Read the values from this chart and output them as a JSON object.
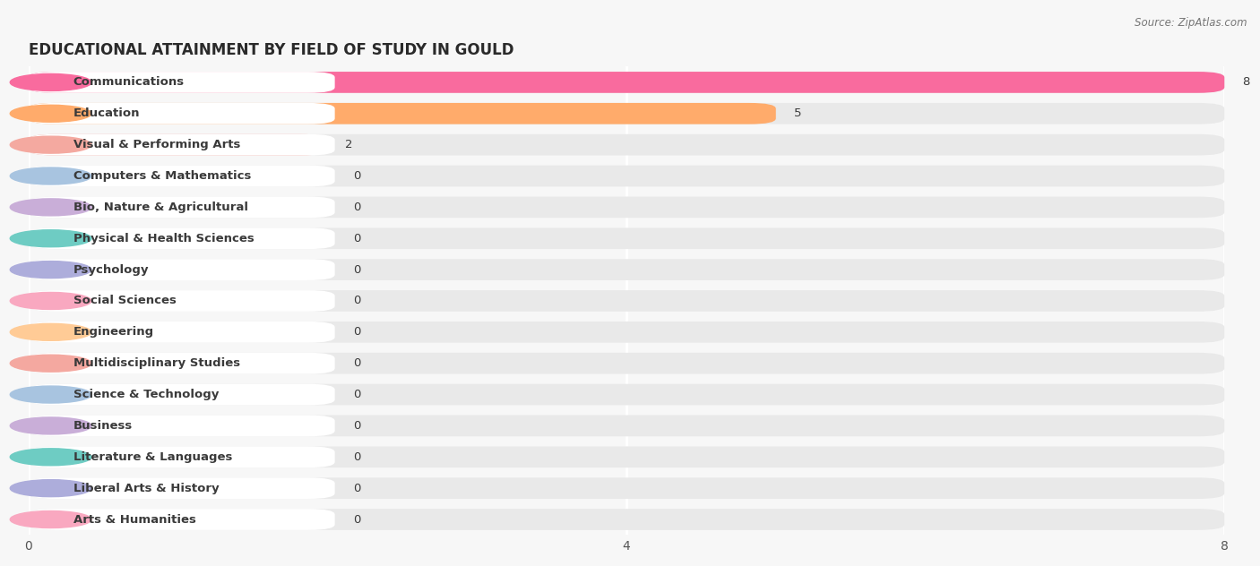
{
  "title": "EDUCATIONAL ATTAINMENT BY FIELD OF STUDY IN GOULD",
  "source": "Source: ZipAtlas.com",
  "categories": [
    "Communications",
    "Education",
    "Visual & Performing Arts",
    "Computers & Mathematics",
    "Bio, Nature & Agricultural",
    "Physical & Health Sciences",
    "Psychology",
    "Social Sciences",
    "Engineering",
    "Multidisciplinary Studies",
    "Science & Technology",
    "Business",
    "Literature & Languages",
    "Liberal Arts & History",
    "Arts & Humanities"
  ],
  "values": [
    8,
    5,
    2,
    0,
    0,
    0,
    0,
    0,
    0,
    0,
    0,
    0,
    0,
    0,
    0
  ],
  "bar_colors": [
    "#F96B9E",
    "#FFAB6B",
    "#F4A9A0",
    "#A8C4E0",
    "#C9AED8",
    "#6ECCC3",
    "#ADADDB",
    "#F9A8C0",
    "#FFCB96",
    "#F4A8A0",
    "#A8C4E0",
    "#C9AED8",
    "#6ECCC3",
    "#ADADDB",
    "#F9A8C0"
  ],
  "xlim": [
    0,
    8
  ],
  "xticks": [
    0,
    4,
    8
  ],
  "background_color": "#f7f7f7",
  "bar_bg_color": "#e9e9e9",
  "title_fontsize": 12,
  "label_fontsize": 9.5,
  "value_fontsize": 9.5
}
